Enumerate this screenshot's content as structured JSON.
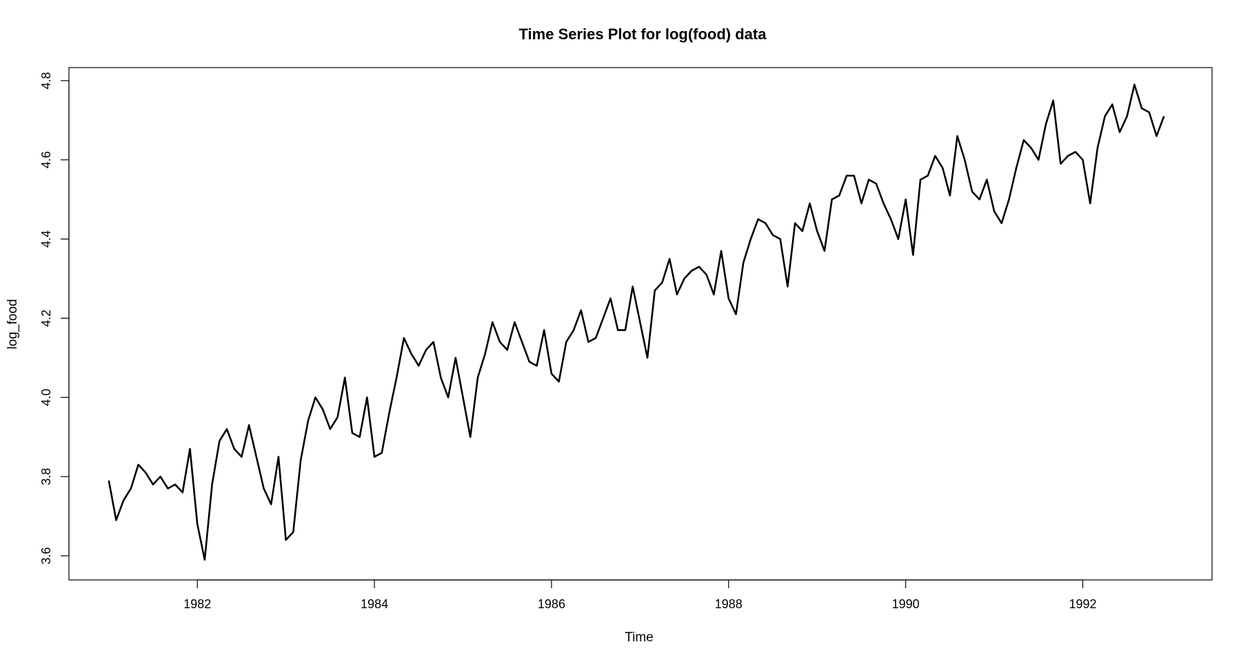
{
  "chart_data": {
    "type": "line",
    "title": "Time Series Plot for log(food) data",
    "xlabel": "Time",
    "ylabel": "log_food",
    "xlim": [
      1980.55,
      1993.46
    ],
    "ylim": [
      3.539,
      4.833
    ],
    "x_ticks": [
      1982,
      1984,
      1986,
      1988,
      1990,
      1992
    ],
    "x_tick_labels": [
      "1982",
      "1984",
      "1986",
      "1988",
      "1990",
      "1992"
    ],
    "y_ticks": [
      3.6,
      3.8,
      4.0,
      4.2,
      4.4,
      4.6,
      4.8
    ],
    "y_tick_labels": [
      "3.6",
      "3.8",
      "4.0",
      "4.2",
      "4.4",
      "4.6",
      "4.8"
    ],
    "grid": false,
    "line_color": "#000000",
    "series": [
      {
        "x_start": 1981.0,
        "x_step": 0.0833333,
        "values": [
          3.79,
          3.69,
          3.74,
          3.77,
          3.83,
          3.81,
          3.78,
          3.8,
          3.77,
          3.78,
          3.76,
          3.87,
          3.68,
          3.59,
          3.78,
          3.89,
          3.92,
          3.87,
          3.85,
          3.93,
          3.85,
          3.77,
          3.73,
          3.85,
          3.64,
          3.66,
          3.84,
          3.94,
          4.0,
          3.97,
          3.92,
          3.95,
          4.05,
          3.91,
          3.9,
          4.0,
          3.85,
          3.86,
          3.96,
          4.05,
          4.15,
          4.11,
          4.08,
          4.12,
          4.14,
          4.05,
          4.0,
          4.1,
          4.0,
          3.9,
          4.05,
          4.11,
          4.19,
          4.14,
          4.12,
          4.19,
          4.14,
          4.09,
          4.08,
          4.17,
          4.06,
          4.04,
          4.14,
          4.17,
          4.22,
          4.14,
          4.15,
          4.2,
          4.25,
          4.17,
          4.17,
          4.28,
          4.19,
          4.1,
          4.27,
          4.29,
          4.35,
          4.26,
          4.3,
          4.32,
          4.33,
          4.31,
          4.26,
          4.37,
          4.25,
          4.21,
          4.34,
          4.4,
          4.45,
          4.44,
          4.41,
          4.4,
          4.28,
          4.44,
          4.42,
          4.49,
          4.42,
          4.37,
          4.5,
          4.51,
          4.56,
          4.56,
          4.49,
          4.55,
          4.54,
          4.49,
          4.45,
          4.4,
          4.5,
          4.36,
          4.55,
          4.56,
          4.61,
          4.58,
          4.51,
          4.66,
          4.6,
          4.52,
          4.5,
          4.55,
          4.47,
          4.44,
          4.5,
          4.58,
          4.65,
          4.63,
          4.6,
          4.69,
          4.75,
          4.59,
          4.61,
          4.62,
          4.6,
          4.49,
          4.63,
          4.71,
          4.74,
          4.67,
          4.71,
          4.79,
          4.73,
          4.72,
          4.66,
          4.71
        ]
      }
    ]
  }
}
